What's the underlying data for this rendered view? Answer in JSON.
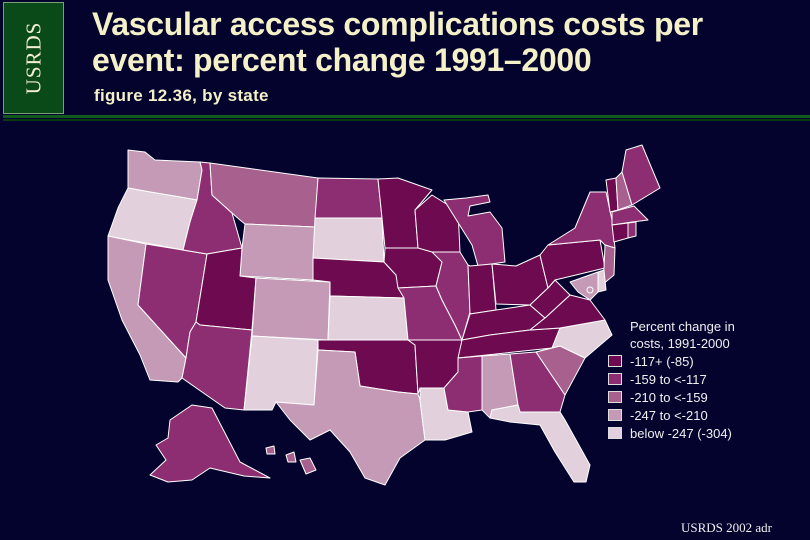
{
  "badge": "USRDS",
  "title_line1": "Vascular access complications costs per",
  "title_line2": "event: percent change 1991–2000",
  "subtitle": "figure 12.36, by state",
  "legend": {
    "title_line1": "Percent change in",
    "title_line2": "costs, 1991-2000",
    "items": [
      {
        "label": "-117+ (-85)",
        "color": "#6e0a50"
      },
      {
        "label": "-159 to <-117",
        "color": "#8e2e72"
      },
      {
        "label": "-210 to <-159",
        "color": "#a8608e"
      },
      {
        "label": "-247 to <-210",
        "color": "#c59ab6"
      },
      {
        "label": "below -247 (-304)",
        "color": "#e2d0dc"
      }
    ]
  },
  "footer": "USRDS 2002 adr",
  "map_data": {
    "states": [
      {
        "state": "WA",
        "bin": 3
      },
      {
        "state": "OR",
        "bin": 4
      },
      {
        "state": "CA",
        "bin": 3
      },
      {
        "state": "NV",
        "bin": 1
      },
      {
        "state": "ID",
        "bin": 1
      },
      {
        "state": "MT",
        "bin": 2
      },
      {
        "state": "WY",
        "bin": 3
      },
      {
        "state": "UT",
        "bin": 0
      },
      {
        "state": "AZ",
        "bin": 1
      },
      {
        "state": "CO",
        "bin": 3
      },
      {
        "state": "NM",
        "bin": 4
      },
      {
        "state": "ND",
        "bin": 1
      },
      {
        "state": "SD",
        "bin": 4
      },
      {
        "state": "NE",
        "bin": 0
      },
      {
        "state": "KS",
        "bin": 4
      },
      {
        "state": "OK",
        "bin": 0
      },
      {
        "state": "TX",
        "bin": 3
      },
      {
        "state": "MN",
        "bin": 0
      },
      {
        "state": "IA",
        "bin": 0
      },
      {
        "state": "MO",
        "bin": 1
      },
      {
        "state": "AR",
        "bin": 0
      },
      {
        "state": "LA",
        "bin": 4
      },
      {
        "state": "WI",
        "bin": 0
      },
      {
        "state": "IL",
        "bin": 1
      },
      {
        "state": "MI",
        "bin": 1
      },
      {
        "state": "IN",
        "bin": 0
      },
      {
        "state": "OH",
        "bin": 0
      },
      {
        "state": "KY",
        "bin": 0
      },
      {
        "state": "TN",
        "bin": 0
      },
      {
        "state": "MS",
        "bin": 1
      },
      {
        "state": "AL",
        "bin": 3
      },
      {
        "state": "GA",
        "bin": 1
      },
      {
        "state": "FL",
        "bin": 4
      },
      {
        "state": "SC",
        "bin": 2
      },
      {
        "state": "NC",
        "bin": 4
      },
      {
        "state": "VA",
        "bin": 0
      },
      {
        "state": "WV",
        "bin": 0
      },
      {
        "state": "PA",
        "bin": 0
      },
      {
        "state": "NY",
        "bin": 1
      },
      {
        "state": "VT",
        "bin": 0
      },
      {
        "state": "NH",
        "bin": 2
      },
      {
        "state": "ME",
        "bin": 1
      },
      {
        "state": "MA",
        "bin": 1
      },
      {
        "state": "CT",
        "bin": 0
      },
      {
        "state": "RI",
        "bin": 1
      },
      {
        "state": "NJ",
        "bin": 2
      },
      {
        "state": "DE",
        "bin": 4
      },
      {
        "state": "MD",
        "bin": 3
      },
      {
        "state": "DC",
        "bin": 3
      },
      {
        "state": "AK",
        "bin": 1
      },
      {
        "state": "HI",
        "bin": 2
      }
    ]
  }
}
